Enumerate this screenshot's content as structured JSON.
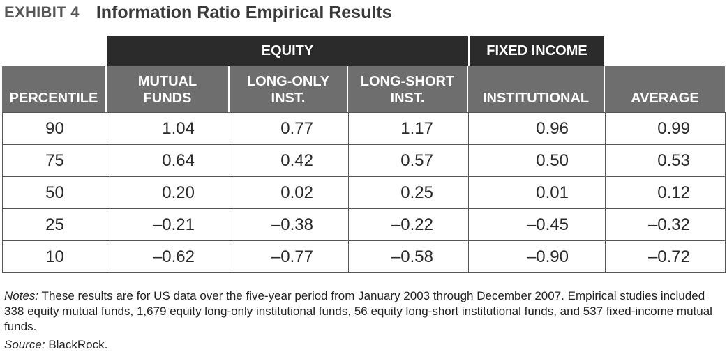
{
  "exhibit": {
    "label": "EXHIBIT 4",
    "title": "Information Ratio Empirical Results"
  },
  "groups": {
    "equity": "EQUITY",
    "fixed_income": "FIXED INCOME"
  },
  "columns": [
    "PERCENTILE",
    "MUTUAL\nFUNDS",
    "LONG-ONLY\nINST.",
    "LONG-SHORT\nINST.",
    "INSTITUTIONAL",
    "AVERAGE"
  ],
  "rows": [
    [
      "90",
      "1.04",
      "0.77",
      "1.17",
      "0.96",
      "0.99"
    ],
    [
      "75",
      "0.64",
      "0.42",
      "0.57",
      "0.50",
      "0.53"
    ],
    [
      "50",
      "0.20",
      "0.02",
      "0.25",
      "0.01",
      "0.12"
    ],
    [
      "25",
      "–0.21",
      "–0.38",
      "–0.22",
      "–0.45",
      "–0.32"
    ],
    [
      "10",
      "–0.62",
      "–0.77",
      "–0.58",
      "–0.90",
      "–0.72"
    ]
  ],
  "notes": {
    "label": "Notes:",
    "text": " These results are for US data over the five-year period from January 2003 through December 2007. Empirical studies included 338 equity mutual funds, 1,679 equity long-only institutional funds, 56 equity long-short institutional funds, and 537 fixed-income mutual funds."
  },
  "source": {
    "label": "Source:",
    "text": " BlackRock."
  },
  "colors": {
    "group_header_bg": "#2b2b2b",
    "column_header_bg": "#6e6e6e",
    "grid_line": "#555555"
  }
}
